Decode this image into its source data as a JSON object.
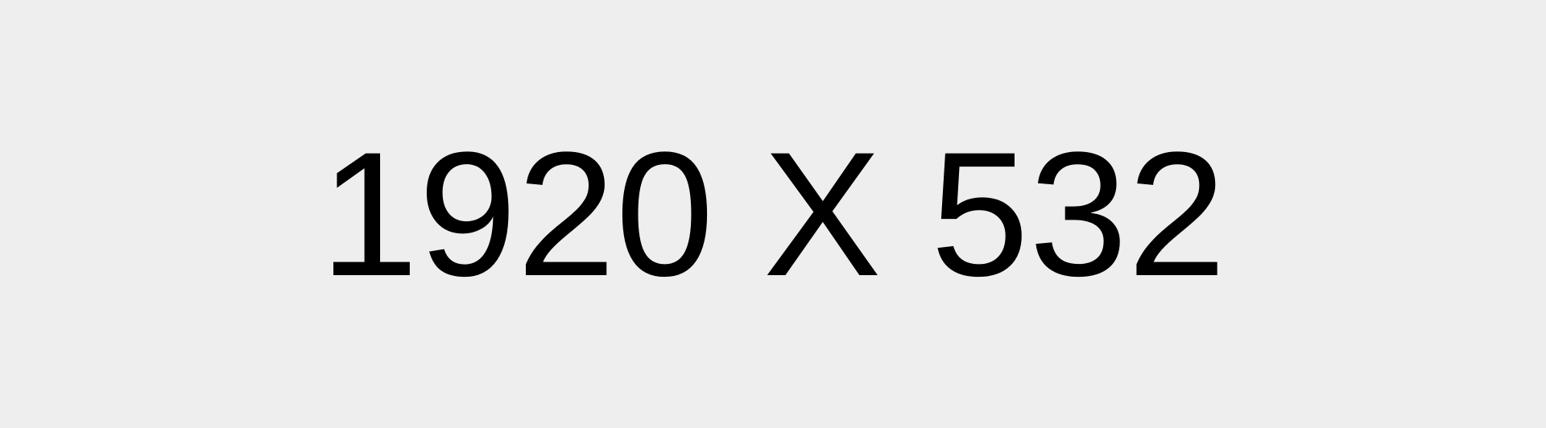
{
  "placeholder": {
    "text": "1920 X 532",
    "background_color": "#eeeeee",
    "text_color": "#000000"
  }
}
